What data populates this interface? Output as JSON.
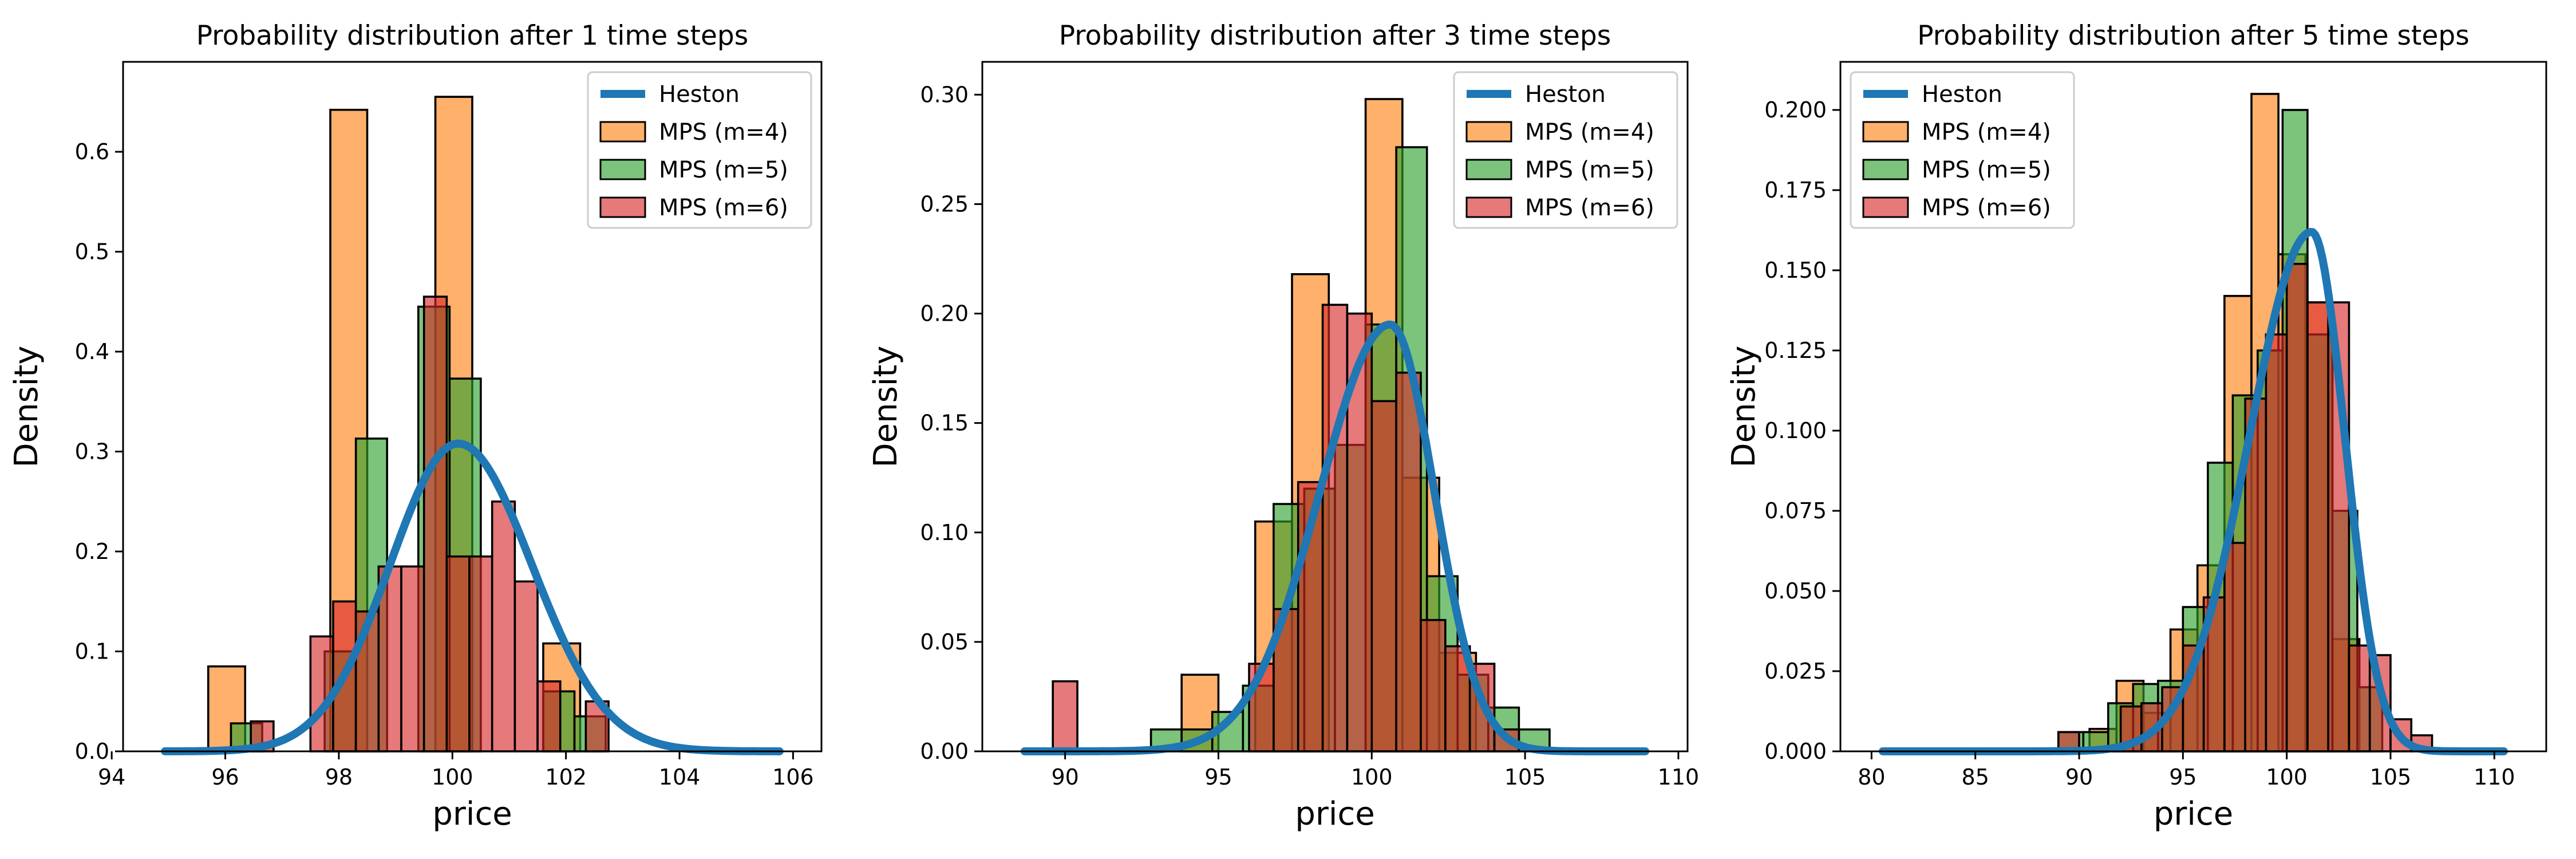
{
  "colors": {
    "heston": "#1f77b4",
    "mps_m4": "#ff7f0e",
    "mps_m5": "#2ca02c",
    "mps_m6": "#d62728",
    "bar_edge": "#000000"
  },
  "chart_data": [
    {
      "type": "bar",
      "title": "Probability distribution after 1 time steps",
      "xlabel": "price",
      "ylabel": "Density",
      "xlim": [
        94.2,
        106.5
      ],
      "ylim": [
        0,
        0.69
      ],
      "xticks": [
        94,
        96,
        98,
        100,
        102,
        104,
        106
      ],
      "yticks": [
        0.0,
        0.1,
        0.2,
        0.3,
        0.4,
        0.5,
        0.6
      ],
      "ytick_labels": [
        "0.0",
        "0.1",
        "0.2",
        "0.3",
        "0.4",
        "0.5",
        "0.6"
      ],
      "legend": {
        "position": "top-right",
        "entries": [
          "Heston",
          "MPS (m=4)",
          "MPS (m=5)",
          "MPS (m=6)"
        ]
      },
      "grid": false,
      "series": [
        {
          "name": "MPS (m=4)",
          "type": "histogram",
          "bins": [
            [
              95.7,
              96.35,
              0.085
            ],
            [
              97.85,
              98.5,
              0.642
            ],
            [
              99.7,
              100.35,
              0.655
            ],
            [
              101.6,
              102.25,
              0.108
            ]
          ]
        },
        {
          "name": "MPS (m=5)",
          "type": "histogram",
          "bins": [
            [
              96.1,
              96.65,
              0.028
            ],
            [
              97.75,
              98.3,
              0.1
            ],
            [
              98.3,
              98.85,
              0.313
            ],
            [
              99.4,
              99.95,
              0.445
            ],
            [
              99.95,
              100.5,
              0.373
            ],
            [
              101.6,
              102.15,
              0.06
            ],
            [
              102.15,
              102.7,
              0.035
            ]
          ]
        },
        {
          "name": "MPS (m=6)",
          "type": "histogram",
          "bins": [
            [
              96.45,
              96.85,
              0.03
            ],
            [
              97.5,
              97.9,
              0.115
            ],
            [
              97.9,
              98.3,
              0.15
            ],
            [
              98.3,
              98.7,
              0.14
            ],
            [
              98.7,
              99.1,
              0.185
            ],
            [
              99.1,
              99.5,
              0.185
            ],
            [
              99.5,
              99.9,
              0.455
            ],
            [
              99.9,
              100.3,
              0.195
            ],
            [
              100.3,
              100.7,
              0.195
            ],
            [
              100.7,
              101.1,
              0.25
            ],
            [
              101.1,
              101.5,
              0.17
            ],
            [
              101.5,
              101.9,
              0.07
            ],
            [
              102.35,
              102.75,
              0.05
            ]
          ]
        },
        {
          "name": "Heston",
          "type": "line",
          "mean": 100.1,
          "sd_left": 1.2,
          "sd_right": 1.3,
          "peak": 0.308
        }
      ]
    },
    {
      "type": "bar",
      "title": "Probability distribution after 3 time steps",
      "xlabel": "price",
      "ylabel": "Density",
      "xlim": [
        87.3,
        110.3
      ],
      "ylim": [
        0,
        0.315
      ],
      "xticks": [
        90,
        95,
        100,
        105,
        110
      ],
      "yticks": [
        0.0,
        0.05,
        0.1,
        0.15,
        0.2,
        0.25,
        0.3
      ],
      "ytick_labels": [
        "0.00",
        "0.05",
        "0.10",
        "0.15",
        "0.20",
        "0.25",
        "0.30"
      ],
      "legend": {
        "position": "top-right",
        "entries": [
          "Heston",
          "MPS (m=4)",
          "MPS (m=5)",
          "MPS (m=6)"
        ]
      },
      "grid": false,
      "series": [
        {
          "name": "MPS (m=4)",
          "type": "histogram",
          "bins": [
            [
              93.8,
              95.0,
              0.035
            ],
            [
              96.2,
              97.4,
              0.105
            ],
            [
              97.4,
              98.6,
              0.218
            ],
            [
              99.8,
              101.0,
              0.298
            ],
            [
              101.0,
              102.2,
              0.125
            ],
            [
              102.2,
              103.4,
              0.045
            ]
          ]
        },
        {
          "name": "MPS (m=5)",
          "type": "histogram",
          "bins": [
            [
              92.8,
              93.8,
              0.01
            ],
            [
              93.8,
              94.8,
              0.01
            ],
            [
              94.8,
              95.8,
              0.018
            ],
            [
              95.8,
              96.8,
              0.03
            ],
            [
              96.8,
              97.8,
              0.113
            ],
            [
              97.8,
              98.8,
              0.12
            ],
            [
              98.8,
              99.8,
              0.14
            ],
            [
              99.8,
              100.8,
              0.195
            ],
            [
              100.8,
              101.8,
              0.276
            ],
            [
              101.8,
              102.8,
              0.08
            ],
            [
              102.8,
              103.8,
              0.035
            ],
            [
              103.8,
              104.8,
              0.02
            ],
            [
              104.8,
              105.8,
              0.01
            ]
          ]
        },
        {
          "name": "MPS (m=6)",
          "type": "histogram",
          "bins": [
            [
              89.6,
              90.4,
              0.032
            ],
            [
              96.0,
              96.8,
              0.04
            ],
            [
              96.8,
              97.6,
              0.065
            ],
            [
              97.6,
              98.4,
              0.123
            ],
            [
              98.4,
              99.2,
              0.204
            ],
            [
              99.2,
              100.0,
              0.2
            ],
            [
              100.0,
              100.8,
              0.16
            ],
            [
              100.8,
              101.6,
              0.173
            ],
            [
              101.6,
              102.4,
              0.06
            ],
            [
              102.4,
              103.2,
              0.048
            ],
            [
              103.2,
              104.0,
              0.04
            ],
            [
              104.0,
              104.8,
              0.01
            ]
          ]
        },
        {
          "name": "Heston",
          "type": "line",
          "mean": 100.6,
          "sd_left": 2.3,
          "sd_right": 1.45,
          "peak": 0.195
        }
      ]
    },
    {
      "type": "bar",
      "title": "Probability distribution after 5 time steps",
      "xlabel": "price",
      "ylabel": "Density",
      "xlim": [
        78.5,
        112.5
      ],
      "ylim": [
        0,
        0.215
      ],
      "xticks": [
        80,
        85,
        90,
        95,
        100,
        105,
        110
      ],
      "yticks": [
        0.0,
        0.025,
        0.05,
        0.075,
        0.1,
        0.125,
        0.15,
        0.175,
        0.2
      ],
      "ytick_labels": [
        "0.000",
        "0.025",
        "0.050",
        "0.075",
        "0.100",
        "0.125",
        "0.150",
        "0.175",
        "0.200"
      ],
      "legend": {
        "position": "top-left",
        "entries": [
          "Heston",
          "MPS (m=4)",
          "MPS (m=5)",
          "MPS (m=6)"
        ]
      },
      "grid": false,
      "series": [
        {
          "name": "MPS (m=4)",
          "type": "histogram",
          "bins": [
            [
              90.5,
              91.8,
              0.007
            ],
            [
              91.8,
              93.1,
              0.022
            ],
            [
              93.1,
              94.4,
              0.012
            ],
            [
              94.4,
              95.7,
              0.038
            ],
            [
              95.7,
              97.0,
              0.058
            ],
            [
              97.0,
              98.3,
              0.142
            ],
            [
              98.3,
              99.6,
              0.205
            ],
            [
              99.6,
              100.9,
              0.155
            ],
            [
              100.9,
              102.2,
              0.14
            ],
            [
              102.2,
              103.5,
              0.035
            ]
          ]
        },
        {
          "name": "MPS (m=5)",
          "type": "histogram",
          "bins": [
            [
              89.0,
              90.2,
              0.006
            ],
            [
              90.2,
              91.4,
              0.006
            ],
            [
              91.4,
              92.6,
              0.015
            ],
            [
              92.6,
              93.8,
              0.021
            ],
            [
              93.8,
              95.0,
              0.022
            ],
            [
              95.0,
              96.2,
              0.045
            ],
            [
              96.2,
              97.4,
              0.09
            ],
            [
              97.4,
              98.6,
              0.111
            ],
            [
              98.6,
              99.8,
              0.125
            ],
            [
              99.8,
              101.0,
              0.2
            ],
            [
              101.0,
              102.2,
              0.13
            ],
            [
              102.2,
              103.4,
              0.075
            ],
            [
              103.4,
              104.6,
              0.02
            ]
          ]
        },
        {
          "name": "MPS (m=6)",
          "type": "histogram",
          "bins": [
            [
              89.0,
              90.0,
              0.006
            ],
            [
              92.0,
              93.0,
              0.014
            ],
            [
              93.0,
              94.0,
              0.015
            ],
            [
              94.0,
              95.0,
              0.02
            ],
            [
              95.0,
              96.0,
              0.033
            ],
            [
              96.0,
              97.0,
              0.048
            ],
            [
              97.0,
              98.0,
              0.065
            ],
            [
              98.0,
              99.0,
              0.11
            ],
            [
              99.0,
              100.0,
              0.13
            ],
            [
              100.0,
              101.0,
              0.152
            ],
            [
              101.0,
              102.0,
              0.14
            ],
            [
              102.0,
              103.0,
              0.14
            ],
            [
              103.0,
              104.0,
              0.033
            ],
            [
              104.0,
              105.0,
              0.03
            ],
            [
              105.0,
              106.0,
              0.01
            ],
            [
              106.0,
              107.0,
              0.005
            ]
          ]
        },
        {
          "name": "Heston",
          "type": "line",
          "mean": 101.2,
          "sd_left": 3.0,
          "sd_right": 1.6,
          "peak": 0.162
        }
      ]
    }
  ]
}
